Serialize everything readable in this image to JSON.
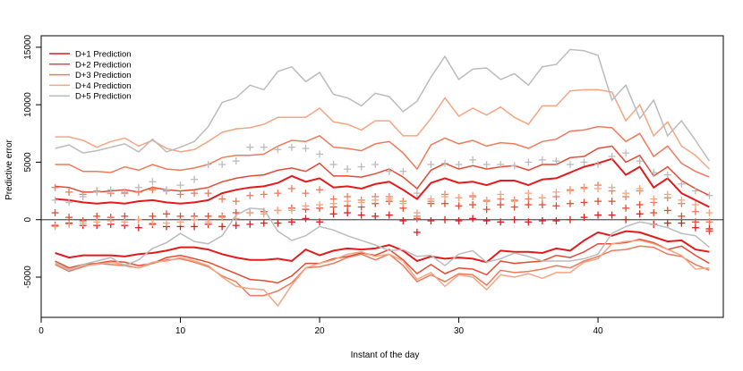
{
  "chart_data": {
    "type": "line",
    "xlabel": "Instant of the day",
    "ylabel": "Predictive error",
    "xlim": [
      0,
      49
    ],
    "ylim": [
      -8500,
      16000
    ],
    "xticks": [
      0,
      10,
      20,
      30,
      40
    ],
    "yticks": [
      -5000,
      0,
      5000,
      10000,
      15000
    ],
    "grid": false,
    "hline": 0,
    "legend_position": "top-left",
    "x": [
      1,
      2,
      3,
      4,
      5,
      6,
      7,
      8,
      9,
      10,
      11,
      12,
      13,
      14,
      15,
      16,
      17,
      18,
      19,
      20,
      21,
      22,
      23,
      24,
      25,
      26,
      27,
      28,
      29,
      30,
      31,
      32,
      33,
      34,
      35,
      36,
      37,
      38,
      39,
      40,
      41,
      42,
      43,
      44,
      45,
      46,
      47,
      48
    ],
    "series": [
      {
        "name": "D+1 Prediction",
        "color": "#e31a1c",
        "upper": [
          1800,
          1700,
          1500,
          1400,
          1500,
          1400,
          1600,
          1700,
          1500,
          1400,
          1500,
          1700,
          2300,
          2600,
          2800,
          2900,
          3200,
          3800,
          3300,
          3600,
          2800,
          2900,
          2700,
          3100,
          3300,
          2600,
          1800,
          3200,
          3600,
          3200,
          3300,
          3000,
          3400,
          3400,
          3000,
          3500,
          3600,
          4100,
          4600,
          4900,
          5300,
          3900,
          4600,
          2800,
          3600,
          2300,
          1700,
          1100
        ],
        "lower": [
          -2900,
          -3300,
          -3100,
          -3100,
          -3100,
          -3200,
          -3000,
          -2900,
          -2700,
          -2400,
          -2400,
          -2600,
          -3000,
          -3300,
          -3500,
          -3500,
          -3400,
          -3600,
          -2600,
          -3100,
          -2700,
          -2500,
          -2600,
          -2500,
          -2200,
          -2700,
          -3600,
          -3200,
          -3400,
          -3300,
          -3400,
          -3700,
          -2700,
          -2800,
          -2800,
          -2900,
          -2500,
          -2700,
          -1800,
          -1100,
          -1400,
          -1000,
          -1100,
          -1500,
          -1900,
          -1800,
          -2600,
          -2800
        ],
        "points": [
          -500,
          -300,
          -500,
          -500,
          -400,
          -500,
          -700,
          -400,
          -600,
          -600,
          -600,
          -400,
          -600,
          -500,
          -400,
          -300,
          -300,
          -200,
          100,
          -200,
          500,
          600,
          400,
          300,
          400,
          -100,
          -1100,
          -100,
          0,
          -100,
          100,
          -100,
          -200,
          0,
          -200,
          -100,
          -100,
          0,
          200,
          400,
          400,
          0,
          500,
          -400,
          -300,
          -300,
          -700,
          -800
        ]
      },
      {
        "name": "D+2 Prediction",
        "color": "#e34a33",
        "upper": [
          2900,
          2800,
          2400,
          2400,
          2500,
          2600,
          2400,
          2800,
          2600,
          2500,
          2600,
          2800,
          3300,
          3600,
          3800,
          3900,
          4300,
          4500,
          4200,
          4900,
          3800,
          3800,
          3700,
          4000,
          4400,
          3700,
          2700,
          4300,
          4900,
          4400,
          4700,
          4400,
          4600,
          4700,
          4300,
          4800,
          4800,
          5400,
          5500,
          6200,
          6400,
          5000,
          5600,
          3800,
          4600,
          3400,
          2700,
          2100
        ],
        "lower": [
          -3600,
          -4200,
          -3900,
          -3800,
          -3600,
          -3700,
          -4000,
          -3800,
          -3300,
          -3100,
          -3400,
          -3700,
          -4200,
          -4700,
          -5200,
          -5300,
          -5500,
          -4900,
          -3800,
          -3800,
          -3400,
          -3200,
          -2900,
          -3100,
          -2600,
          -3500,
          -4700,
          -3900,
          -4700,
          -4200,
          -4300,
          -4800,
          -3600,
          -3800,
          -3700,
          -3600,
          -3100,
          -3300,
          -2800,
          -2100,
          -2100,
          -2000,
          -1700,
          -2000,
          -2600,
          -2300,
          -3100,
          -3800
        ],
        "points": [
          600,
          200,
          -100,
          300,
          200,
          300,
          0,
          300,
          500,
          300,
          300,
          300,
          300,
          600,
          600,
          700,
          800,
          1000,
          900,
          1000,
          1100,
          1200,
          1100,
          1400,
          1600,
          1000,
          100,
          1400,
          1400,
          1200,
          1300,
          900,
          1300,
          1100,
          1300,
          1300,
          1200,
          1400,
          1500,
          1600,
          1600,
          1000,
          1300,
          600,
          800,
          300,
          -200,
          -1000
        ]
      },
      {
        "name": "D+3 Prediction",
        "color": "#ee7a5a",
        "upper": [
          4800,
          4800,
          4200,
          4200,
          4100,
          4600,
          4300,
          4800,
          4400,
          4300,
          4500,
          4800,
          5400,
          5600,
          5600,
          5700,
          6400,
          6900,
          6800,
          7300,
          6300,
          6200,
          6000,
          6600,
          6800,
          5800,
          4400,
          6500,
          7100,
          6600,
          6900,
          6400,
          6700,
          6600,
          6200,
          6800,
          7000,
          7700,
          7800,
          8100,
          8000,
          6800,
          7500,
          5500,
          6400,
          4900,
          4200,
          3700
        ],
        "lower": [
          -3900,
          -4500,
          -4100,
          -3800,
          -3900,
          -4000,
          -4200,
          -3800,
          -3500,
          -3400,
          -3700,
          -4100,
          -4900,
          -5400,
          -6600,
          -6600,
          -6200,
          -5500,
          -4200,
          -4100,
          -3800,
          -3300,
          -3000,
          -3500,
          -3000,
          -4000,
          -5400,
          -4800,
          -5400,
          -4700,
          -4800,
          -5700,
          -4400,
          -4600,
          -4500,
          -4300,
          -4000,
          -4200,
          -3600,
          -3200,
          -2700,
          -2600,
          -2300,
          -2400,
          -3000,
          -3200,
          -3900,
          -4400
        ],
        "points": [
          2800,
          2400,
          2200,
          2500,
          2300,
          2300,
          2400,
          2600,
          2500,
          2200,
          2300,
          2300,
          1800,
          1600,
          2100,
          2200,
          2300,
          2700,
          2300,
          2600,
          1800,
          2000,
          1700,
          2000,
          2000,
          1600,
          300,
          1600,
          2200,
          1900,
          2000,
          1600,
          1800,
          1700,
          1800,
          1900,
          2000,
          2600,
          2800,
          3000,
          2500,
          2000,
          2500,
          1500,
          1900,
          1400,
          700,
          -200
        ]
      },
      {
        "name": "D+4 Prediction",
        "color": "#f4a582",
        "upper": [
          7200,
          7200,
          6900,
          6300,
          6800,
          7100,
          6400,
          6900,
          6200,
          5900,
          6100,
          6800,
          7600,
          7900,
          8000,
          8300,
          8900,
          8900,
          8900,
          9700,
          8500,
          8300,
          7800,
          8600,
          8600,
          7300,
          7300,
          8800,
          10600,
          9000,
          9700,
          9100,
          9800,
          8900,
          8300,
          9900,
          9900,
          11200,
          11300,
          11300,
          11100,
          8600,
          10000,
          7300,
          8500,
          6400,
          5600,
          4400
        ],
        "lower": [
          -3800,
          -4300,
          -4000,
          -3900,
          -3700,
          -3900,
          -4200,
          -3700,
          -3600,
          -3300,
          -3600,
          -4000,
          -5000,
          -5800,
          -6000,
          -6100,
          -7500,
          -5700,
          -4200,
          -3800,
          -3500,
          -3000,
          -2800,
          -3200,
          -3000,
          -3600,
          -5200,
          -4600,
          -5800,
          -4800,
          -5000,
          -6100,
          -4800,
          -5000,
          -4700,
          -5100,
          -4600,
          -4600,
          -3700,
          -3400,
          -2100,
          -1900,
          -1800,
          -2100,
          -2600,
          -3100,
          -4300,
          -4200
        ],
        "points": [
          -600,
          -400,
          -300,
          -200,
          -100,
          -200,
          0,
          -300,
          -300,
          -200,
          0,
          -200,
          200,
          100,
          600,
          500,
          800,
          800,
          1200,
          1300,
          1400,
          1600,
          1500,
          1700,
          1800,
          1400,
          600,
          1800,
          2000,
          1900,
          2100,
          1700,
          2200,
          1600,
          2300,
          1900,
          2400,
          2500,
          2700,
          2700,
          2800,
          2300,
          2700,
          1800,
          2200,
          1700,
          1300,
          600
        ]
      },
      {
        "name": "D+5 Prediction",
        "color": "#bbbbbb",
        "upper": [
          6200,
          6500,
          5800,
          6000,
          6300,
          6600,
          5900,
          7000,
          5900,
          6300,
          6800,
          8100,
          10200,
          10600,
          11700,
          11300,
          12900,
          13300,
          12000,
          12800,
          10900,
          10600,
          9900,
          11000,
          10700,
          9400,
          10300,
          12400,
          14200,
          12200,
          13100,
          13200,
          12200,
          12700,
          11700,
          13300,
          13500,
          14800,
          14700,
          14300,
          10400,
          11700,
          8800,
          10400,
          7300,
          8600,
          6900,
          5100
        ],
        "lower": [
          -3700,
          -4400,
          -3900,
          -3600,
          -3300,
          -4000,
          -3500,
          -2500,
          -2000,
          -1200,
          -1900,
          -2100,
          -1400,
          400,
          1000,
          900,
          -1000,
          -1800,
          -1400,
          -600,
          -900,
          -1400,
          -1800,
          -2200,
          -2700,
          -2600,
          -3200,
          -3100,
          -4000,
          -3000,
          -2700,
          -3700,
          -3400,
          -2900,
          -3200,
          -3600,
          -3600,
          -3600,
          -3400,
          -3000,
          -1200,
          -600,
          -200,
          -400,
          -700,
          -1200,
          -1400,
          -2400
        ],
        "points": [
          1700,
          1500,
          2000,
          2400,
          2600,
          2400,
          2800,
          3300,
          2600,
          3000,
          3500,
          4800,
          4800,
          5100,
          6300,
          6300,
          6100,
          6300,
          6200,
          5700,
          4800,
          4400,
          4600,
          4800,
          4200,
          4200,
          2300,
          4800,
          4900,
          4800,
          5200,
          4800,
          4800,
          4700,
          5000,
          5200,
          5100,
          4800,
          5000,
          4800,
          5500,
          5800,
          5100,
          4100,
          3900,
          3100,
          2500,
          2100
        ]
      }
    ]
  }
}
